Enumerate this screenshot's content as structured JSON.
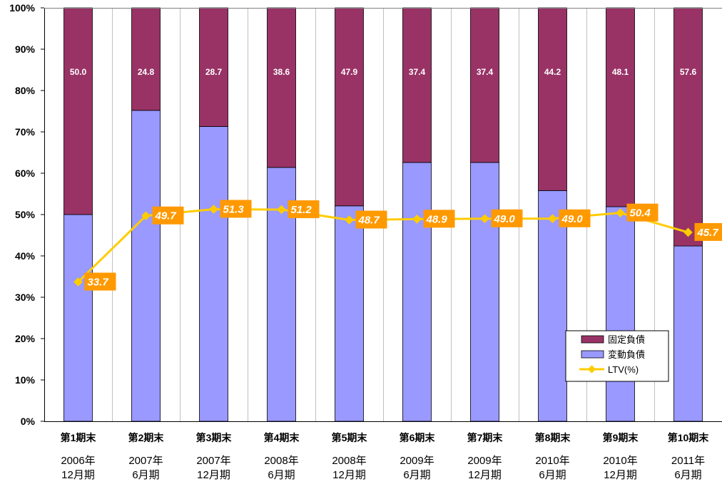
{
  "chart_data": {
    "type": "bar",
    "stacked": true,
    "percent_stacked": true,
    "categories": [
      {
        "line1": "第1期末",
        "line2": "2006年",
        "line3": "12月期"
      },
      {
        "line1": "第2期末",
        "line2": "2007年",
        "line3": "6月期"
      },
      {
        "line1": "第3期末",
        "line2": "2007年",
        "line3": "12月期"
      },
      {
        "line1": "第4期末",
        "line2": "2008年",
        "line3": "6月期"
      },
      {
        "line1": "第5期末",
        "line2": "2008年",
        "line3": "12月期"
      },
      {
        "line1": "第6期末",
        "line2": "2009年",
        "line3": "6月期"
      },
      {
        "line1": "第7期末",
        "line2": "2009年",
        "line3": "12月期"
      },
      {
        "line1": "第8期末",
        "line2": "2010年",
        "line3": "6月期"
      },
      {
        "line1": "第9期末",
        "line2": "2010年",
        "line3": "12月期"
      },
      {
        "line1": "第10期末",
        "line2": "2011年",
        "line3": "6月期"
      }
    ],
    "series": [
      {
        "name": "変動負債",
        "kind": "bar",
        "color": "#9999ff",
        "values": [
          50.0,
          75.2,
          71.3,
          61.4,
          52.1,
          62.6,
          62.6,
          55.8,
          51.9,
          42.4
        ]
      },
      {
        "name": "固定負債",
        "kind": "bar",
        "color": "#993366",
        "values": [
          50.0,
          24.8,
          28.7,
          38.6,
          47.9,
          37.4,
          37.4,
          44.2,
          48.1,
          57.6
        ],
        "labels": [
          "50.0",
          "24.8",
          "28.7",
          "38.6",
          "47.9",
          "37.4",
          "37.4",
          "44.2",
          "48.1",
          "57.6"
        ]
      },
      {
        "name": "LTV(%)",
        "kind": "line",
        "color": "#ffcc00",
        "values": [
          33.7,
          49.7,
          51.3,
          51.2,
          48.7,
          48.9,
          49.0,
          49.0,
          50.4,
          45.7
        ],
        "labels": [
          "33.7",
          "49.7",
          "51.3",
          "51.2",
          "48.7",
          "48.9",
          "49.0",
          "49.0",
          "50.4",
          "45.7"
        ]
      }
    ],
    "ylim": [
      0,
      100
    ],
    "yticks": [
      "0%",
      "10%",
      "20%",
      "30%",
      "40%",
      "50%",
      "60%",
      "70%",
      "80%",
      "90%",
      "100%"
    ],
    "grid": "vertical lines between categories",
    "legend": [
      {
        "label": "固定負債",
        "series": "固定負債"
      },
      {
        "label": "変動負債",
        "series": "変動負債"
      },
      {
        "label": "LTV(%)",
        "series": "LTV(%)"
      }
    ],
    "legend_position": "bottom-right",
    "colors": {
      "fixed": "#993366",
      "variable": "#9999ff",
      "ltv_line": "#ffcc00",
      "ltv_label_bg": "#ff9900"
    }
  }
}
